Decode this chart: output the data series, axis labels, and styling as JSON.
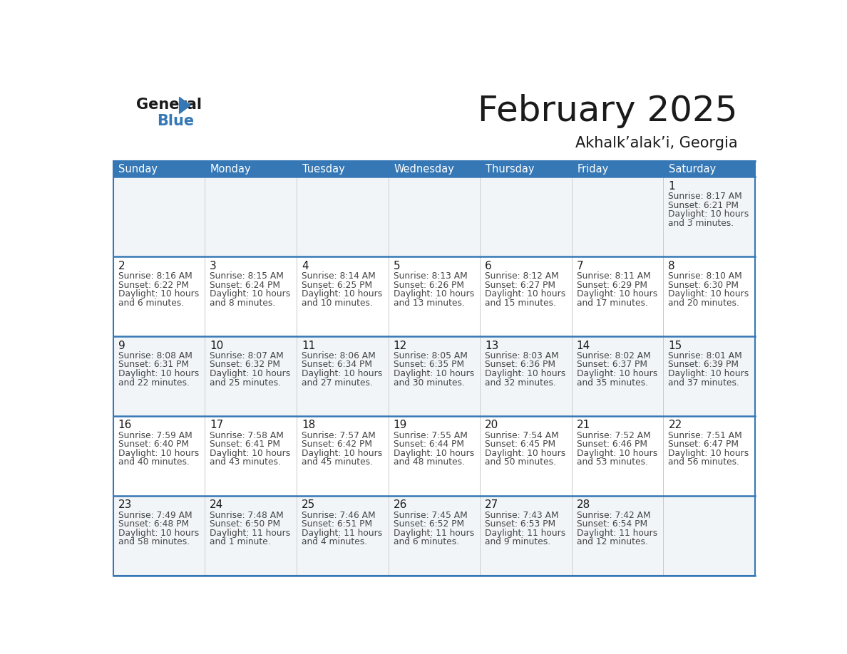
{
  "title": "February 2025",
  "subtitle": "Akhalk’alak’i, Georgia",
  "days_of_week": [
    "Sunday",
    "Monday",
    "Tuesday",
    "Wednesday",
    "Thursday",
    "Friday",
    "Saturday"
  ],
  "header_bg": "#3578b5",
  "header_text": "#ffffff",
  "cell_bg_even": "#f2f5f8",
  "cell_bg_odd": "#ffffff",
  "separator_color": "#3578b5",
  "title_color": "#1a1a1a",
  "subtitle_color": "#1a1a1a",
  "day_num_color": "#1a1a1a",
  "info_color": "#444444",
  "logo_general_color": "#1a1a1a",
  "logo_blue_color": "#3578b5",
  "logo_triangle_color": "#3578b5",
  "calendar_data": [
    [
      null,
      null,
      null,
      null,
      null,
      null,
      {
        "day": 1,
        "sunrise": "8:17 AM",
        "sunset": "6:21 PM",
        "daylight_line1": "Daylight: 10 hours",
        "daylight_line2": "and 3 minutes."
      }
    ],
    [
      {
        "day": 2,
        "sunrise": "8:16 AM",
        "sunset": "6:22 PM",
        "daylight_line1": "Daylight: 10 hours",
        "daylight_line2": "and 6 minutes."
      },
      {
        "day": 3,
        "sunrise": "8:15 AM",
        "sunset": "6:24 PM",
        "daylight_line1": "Daylight: 10 hours",
        "daylight_line2": "and 8 minutes."
      },
      {
        "day": 4,
        "sunrise": "8:14 AM",
        "sunset": "6:25 PM",
        "daylight_line1": "Daylight: 10 hours",
        "daylight_line2": "and 10 minutes."
      },
      {
        "day": 5,
        "sunrise": "8:13 AM",
        "sunset": "6:26 PM",
        "daylight_line1": "Daylight: 10 hours",
        "daylight_line2": "and 13 minutes."
      },
      {
        "day": 6,
        "sunrise": "8:12 AM",
        "sunset": "6:27 PM",
        "daylight_line1": "Daylight: 10 hours",
        "daylight_line2": "and 15 minutes."
      },
      {
        "day": 7,
        "sunrise": "8:11 AM",
        "sunset": "6:29 PM",
        "daylight_line1": "Daylight: 10 hours",
        "daylight_line2": "and 17 minutes."
      },
      {
        "day": 8,
        "sunrise": "8:10 AM",
        "sunset": "6:30 PM",
        "daylight_line1": "Daylight: 10 hours",
        "daylight_line2": "and 20 minutes."
      }
    ],
    [
      {
        "day": 9,
        "sunrise": "8:08 AM",
        "sunset": "6:31 PM",
        "daylight_line1": "Daylight: 10 hours",
        "daylight_line2": "and 22 minutes."
      },
      {
        "day": 10,
        "sunrise": "8:07 AM",
        "sunset": "6:32 PM",
        "daylight_line1": "Daylight: 10 hours",
        "daylight_line2": "and 25 minutes."
      },
      {
        "day": 11,
        "sunrise": "8:06 AM",
        "sunset": "6:34 PM",
        "daylight_line1": "Daylight: 10 hours",
        "daylight_line2": "and 27 minutes."
      },
      {
        "day": 12,
        "sunrise": "8:05 AM",
        "sunset": "6:35 PM",
        "daylight_line1": "Daylight: 10 hours",
        "daylight_line2": "and 30 minutes."
      },
      {
        "day": 13,
        "sunrise": "8:03 AM",
        "sunset": "6:36 PM",
        "daylight_line1": "Daylight: 10 hours",
        "daylight_line2": "and 32 minutes."
      },
      {
        "day": 14,
        "sunrise": "8:02 AM",
        "sunset": "6:37 PM",
        "daylight_line1": "Daylight: 10 hours",
        "daylight_line2": "and 35 minutes."
      },
      {
        "day": 15,
        "sunrise": "8:01 AM",
        "sunset": "6:39 PM",
        "daylight_line1": "Daylight: 10 hours",
        "daylight_line2": "and 37 minutes."
      }
    ],
    [
      {
        "day": 16,
        "sunrise": "7:59 AM",
        "sunset": "6:40 PM",
        "daylight_line1": "Daylight: 10 hours",
        "daylight_line2": "and 40 minutes."
      },
      {
        "day": 17,
        "sunrise": "7:58 AM",
        "sunset": "6:41 PM",
        "daylight_line1": "Daylight: 10 hours",
        "daylight_line2": "and 43 minutes."
      },
      {
        "day": 18,
        "sunrise": "7:57 AM",
        "sunset": "6:42 PM",
        "daylight_line1": "Daylight: 10 hours",
        "daylight_line2": "and 45 minutes."
      },
      {
        "day": 19,
        "sunrise": "7:55 AM",
        "sunset": "6:44 PM",
        "daylight_line1": "Daylight: 10 hours",
        "daylight_line2": "and 48 minutes."
      },
      {
        "day": 20,
        "sunrise": "7:54 AM",
        "sunset": "6:45 PM",
        "daylight_line1": "Daylight: 10 hours",
        "daylight_line2": "and 50 minutes."
      },
      {
        "day": 21,
        "sunrise": "7:52 AM",
        "sunset": "6:46 PM",
        "daylight_line1": "Daylight: 10 hours",
        "daylight_line2": "and 53 minutes."
      },
      {
        "day": 22,
        "sunrise": "7:51 AM",
        "sunset": "6:47 PM",
        "daylight_line1": "Daylight: 10 hours",
        "daylight_line2": "and 56 minutes."
      }
    ],
    [
      {
        "day": 23,
        "sunrise": "7:49 AM",
        "sunset": "6:48 PM",
        "daylight_line1": "Daylight: 10 hours",
        "daylight_line2": "and 58 minutes."
      },
      {
        "day": 24,
        "sunrise": "7:48 AM",
        "sunset": "6:50 PM",
        "daylight_line1": "Daylight: 11 hours",
        "daylight_line2": "and 1 minute."
      },
      {
        "day": 25,
        "sunrise": "7:46 AM",
        "sunset": "6:51 PM",
        "daylight_line1": "Daylight: 11 hours",
        "daylight_line2": "and 4 minutes."
      },
      {
        "day": 26,
        "sunrise": "7:45 AM",
        "sunset": "6:52 PM",
        "daylight_line1": "Daylight: 11 hours",
        "daylight_line2": "and 6 minutes."
      },
      {
        "day": 27,
        "sunrise": "7:43 AM",
        "sunset": "6:53 PM",
        "daylight_line1": "Daylight: 11 hours",
        "daylight_line2": "and 9 minutes."
      },
      {
        "day": 28,
        "sunrise": "7:42 AM",
        "sunset": "6:54 PM",
        "daylight_line1": "Daylight: 11 hours",
        "daylight_line2": "and 12 minutes."
      },
      null
    ]
  ]
}
